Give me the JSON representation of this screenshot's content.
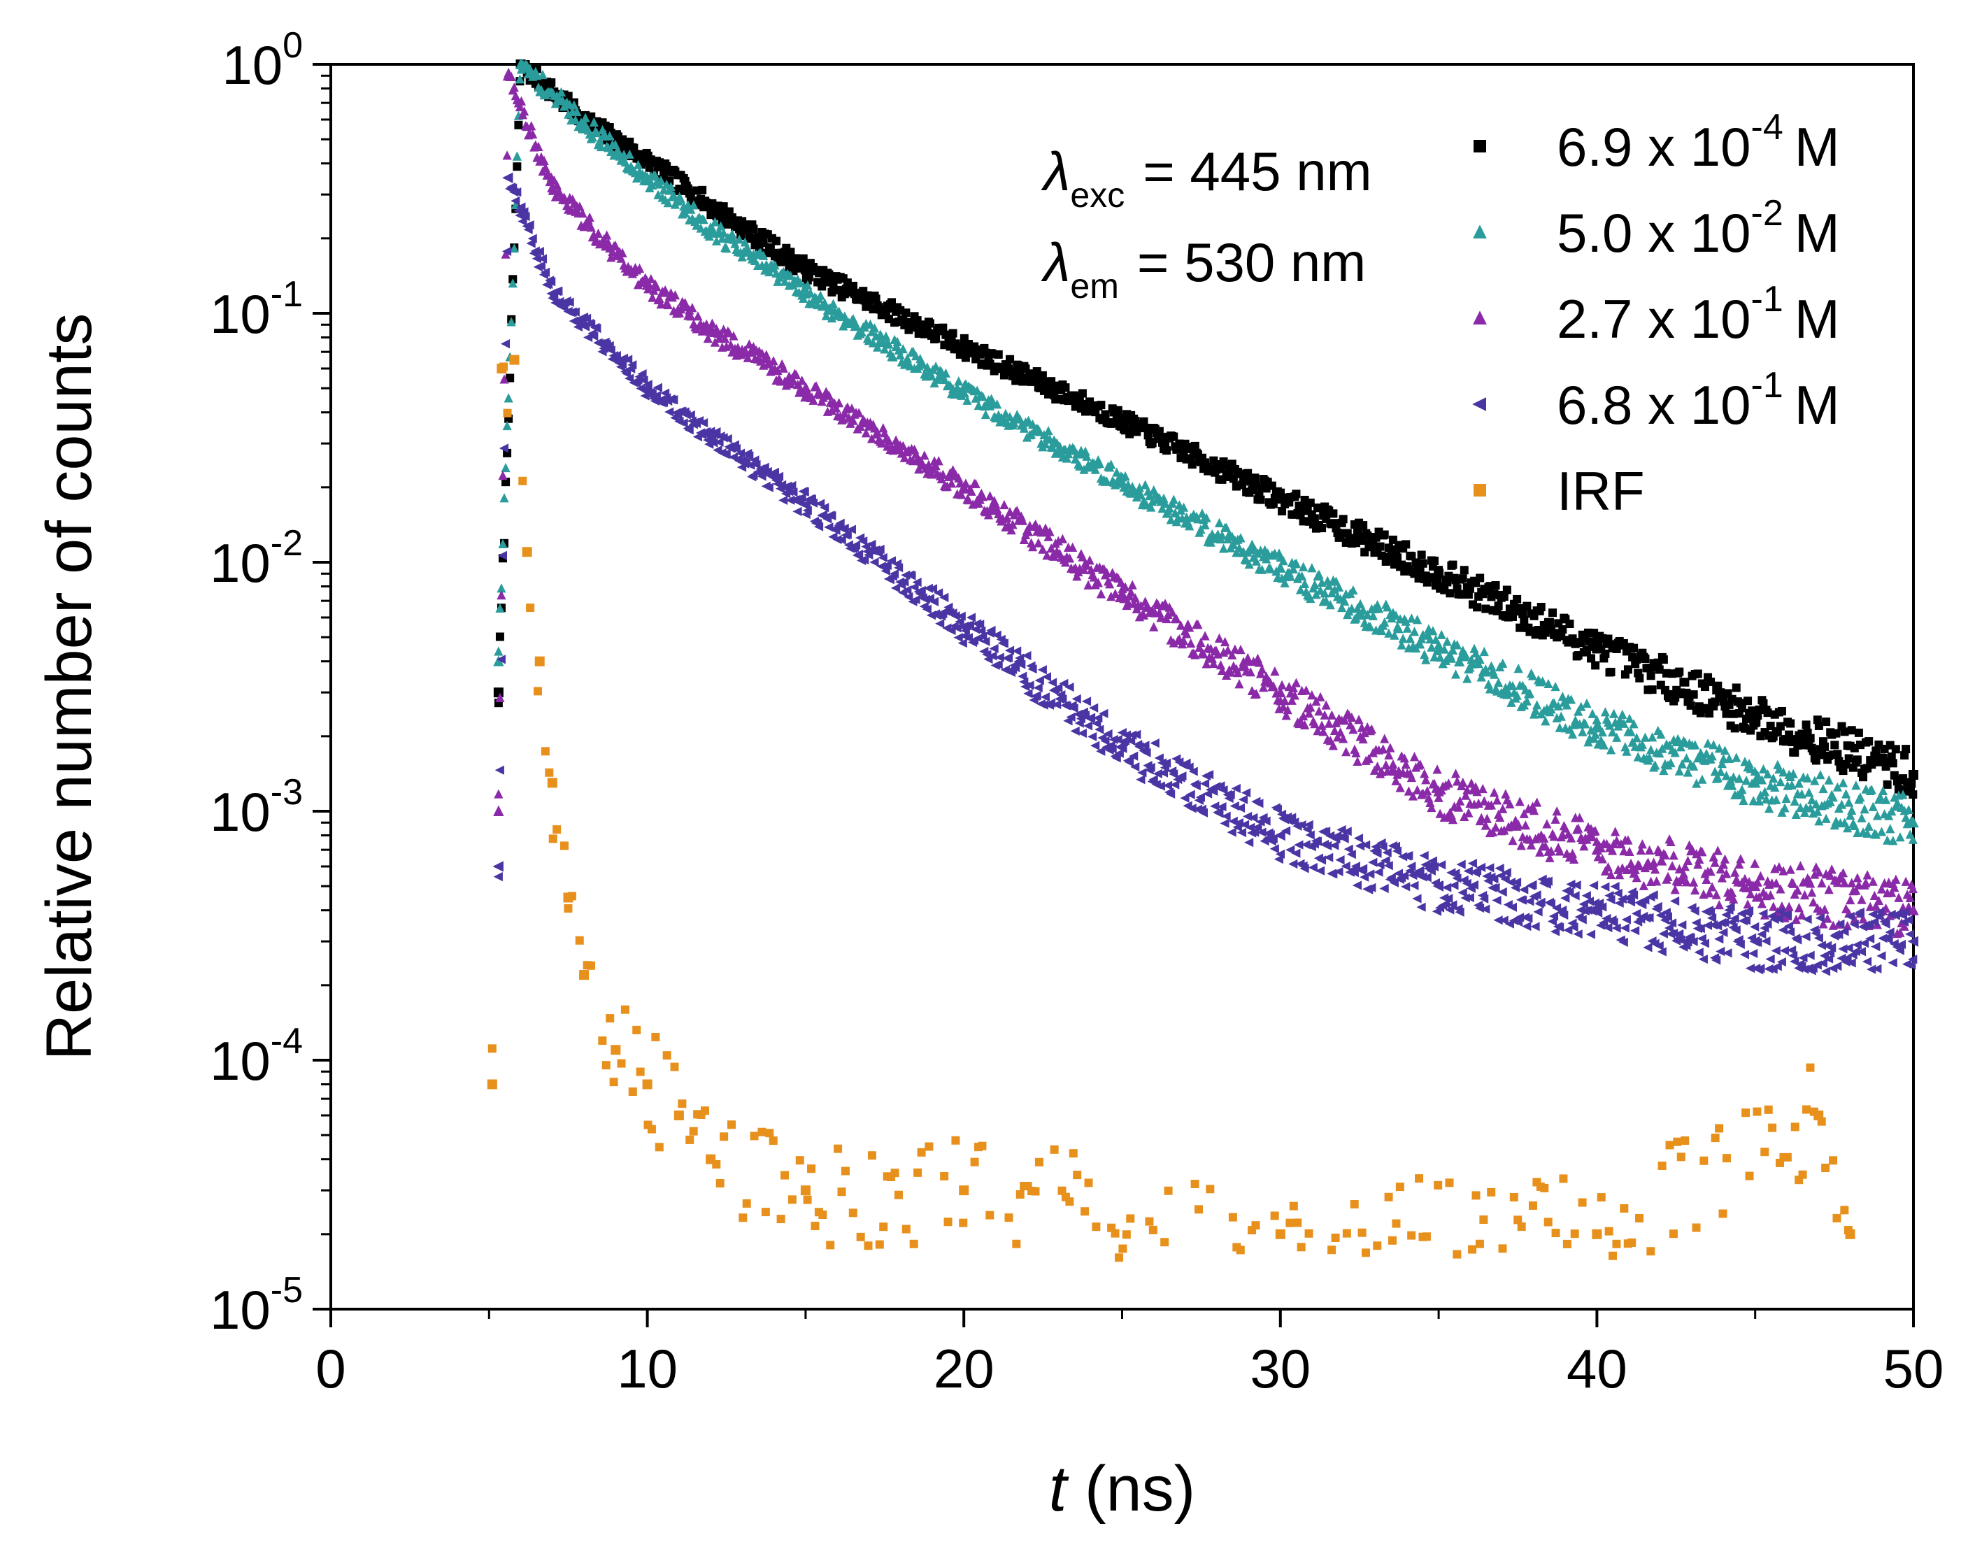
{
  "chart_data": {
    "type": "scatter",
    "title": "",
    "xlabel": {
      "italic": "t",
      "rest": " (ns)"
    },
    "ylabel": "Relative number of counts",
    "x_scale": "linear",
    "y_scale": "log",
    "xlim": [
      0,
      50
    ],
    "ylim": [
      1e-05,
      1
    ],
    "x_ticks": [
      "0",
      "10",
      "20",
      "30",
      "40",
      "50"
    ],
    "y_ticks": [
      {
        "base": "10",
        "exp": "0"
      },
      {
        "base": "10",
        "exp": "-1"
      },
      {
        "base": "10",
        "exp": "-2"
      },
      {
        "base": "10",
        "exp": "-3"
      },
      {
        "base": "10",
        "exp": "-4"
      },
      {
        "base": "10",
        "exp": "-5"
      }
    ],
    "grid": false,
    "legend_position": "top-right",
    "annotations": [
      {
        "symbol": "λ",
        "sub": "exc",
        "text": "= 445 nm"
      },
      {
        "symbol": "λ",
        "sub": "em",
        "text": "= 530 nm"
      }
    ],
    "series": [
      {
        "name": "6.9 x 10^-4 M",
        "legend": {
          "mant": "6.9 x 10",
          "exp": "-4",
          "unit": "M"
        },
        "marker": "square",
        "color": "#000000",
        "x": [
          5.3,
          6,
          8,
          10,
          12,
          15,
          20,
          25,
          30,
          35,
          40,
          45,
          50
        ],
        "y": [
          0.003,
          1.0,
          0.6,
          0.41,
          0.27,
          0.15,
          0.073,
          0.037,
          0.018,
          0.009,
          0.0045,
          0.0024,
          0.0014
        ]
      },
      {
        "name": "5.0 x 10^-2 M",
        "legend": {
          "mant": "5.0 x 10",
          "exp": "-2",
          "unit": "M"
        },
        "marker": "triangle-up",
        "color": "#2a9c9b",
        "x": [
          5.3,
          6,
          8,
          10,
          12,
          15,
          20,
          25,
          30,
          35,
          40,
          45,
          50
        ],
        "y": [
          0.004,
          1.0,
          0.58,
          0.35,
          0.22,
          0.12,
          0.048,
          0.021,
          0.0095,
          0.0045,
          0.0022,
          0.0013,
          0.0009
        ]
      },
      {
        "name": "2.7 x 10^-1 M",
        "legend": {
          "mant": "2.7 x 10",
          "exp": "-1",
          "unit": "M"
        },
        "marker": "triangle-up",
        "color": "#8a2aa8",
        "x": [
          5.3,
          5.6,
          7,
          10,
          12,
          15,
          20,
          25,
          30,
          35,
          40,
          45,
          50
        ],
        "y": [
          0.001,
          0.9,
          0.32,
          0.13,
          0.085,
          0.05,
          0.02,
          0.0075,
          0.003,
          0.0012,
          0.0007,
          0.0005,
          0.0004
        ]
      },
      {
        "name": "6.8 x 10^-1 M",
        "legend": {
          "mant": "6.8 x 10",
          "exp": "-1",
          "unit": "M"
        },
        "marker": "triangle-left",
        "color": "#4b34a3",
        "x": [
          5.3,
          5.6,
          7,
          10,
          12,
          15,
          20,
          25,
          30,
          35,
          40,
          45,
          50
        ],
        "y": [
          0.0006,
          0.35,
          0.12,
          0.05,
          0.032,
          0.017,
          0.0055,
          0.0018,
          0.0008,
          0.0005,
          0.0004,
          0.0003,
          0.0003
        ]
      },
      {
        "name": "IRF",
        "legend": {
          "mant": "IRF",
          "exp": "",
          "unit": ""
        },
        "marker": "square",
        "color": "#e8901c",
        "x": [
          5.1,
          5.4,
          5.8,
          6.2,
          6.6,
          7,
          7.5,
          8,
          9,
          10,
          11,
          12,
          15,
          20,
          30,
          40,
          47,
          48
        ],
        "y": [
          8e-05,
          0.06,
          0.065,
          0.011,
          0.004,
          0.0013,
          0.00045,
          0.00022,
          0.00011,
          8e-05,
          6e-05,
          4e-05,
          3e-05,
          3e-05,
          2e-05,
          2e-05,
          6e-05,
          2e-05
        ]
      }
    ]
  }
}
